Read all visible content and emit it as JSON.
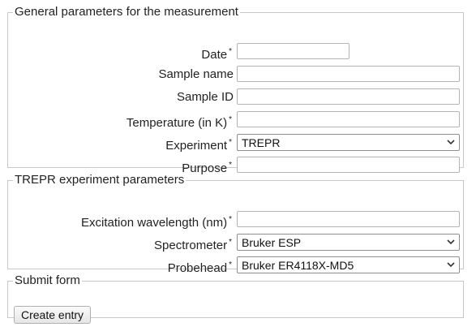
{
  "general": {
    "legend": "General parameters for the measurement",
    "date": {
      "label": "Date",
      "required_mark": "*",
      "value": ""
    },
    "sample_name": {
      "label": "Sample name",
      "value": ""
    },
    "sample_id": {
      "label": "Sample ID",
      "value": ""
    },
    "temperature": {
      "label": "Temperature (in K)",
      "required_mark": "*",
      "value": ""
    },
    "experiment": {
      "label": "Experiment",
      "required_mark": "*",
      "selected": "TREPR"
    },
    "purpose": {
      "label": "Purpose",
      "required_mark": "*",
      "value": ""
    }
  },
  "trepr": {
    "legend": "TREPR experiment parameters",
    "excitation_wavelength": {
      "label": "Excitation wavelength (nm)",
      "required_mark": "*",
      "value": ""
    },
    "spectrometer": {
      "label": "Spectrometer",
      "required_mark": "*",
      "selected": "Bruker ESP"
    },
    "probehead": {
      "label": "Probehead",
      "required_mark": "*",
      "selected": "Bruker ER4118X-MD5"
    }
  },
  "submit": {
    "legend": "Submit form",
    "button_label": "Create entry"
  },
  "icons": {
    "dropdown": "chevron-down-icon"
  }
}
